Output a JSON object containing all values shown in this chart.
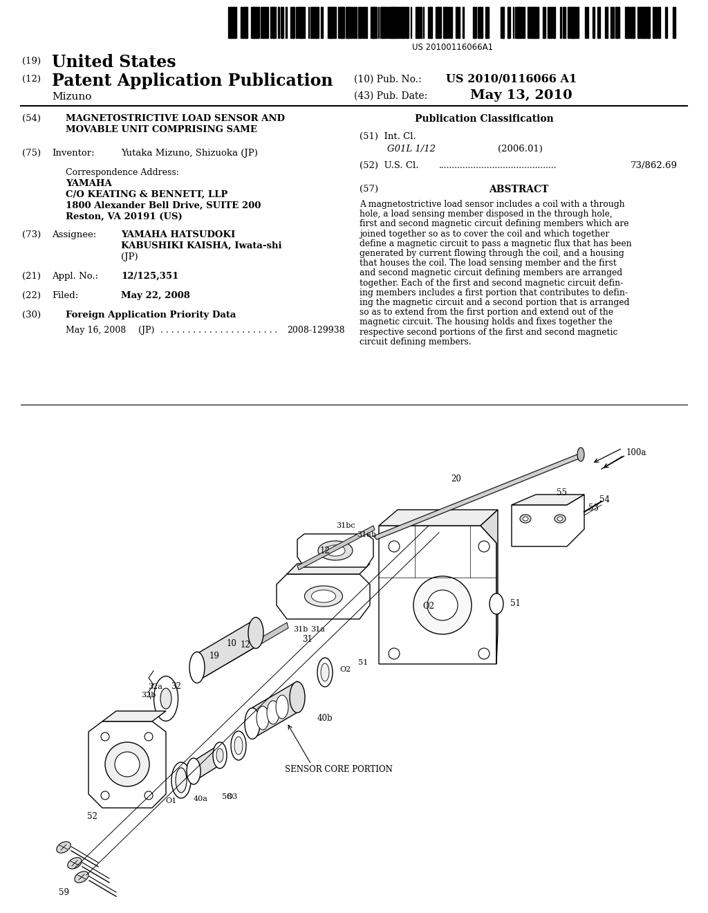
{
  "background_color": "#ffffff",
  "barcode_text": "US 20100116066A1",
  "us_label": "(19)",
  "us_text": "United States",
  "pat_label": "(12)",
  "pat_text": "Patent Application Publication",
  "pub_no_label": "(10) Pub. No.:",
  "pub_no_value": "US 2010/0116066 A1",
  "inventor_surname": "Mizuno",
  "pub_date_label": "(43) Pub. Date:",
  "pub_date_value": "May 13, 2010",
  "title_label": "(54)",
  "title_line1": "MAGNETOSTRICTIVE LOAD SENSOR AND",
  "title_line2": "MOVABLE UNIT COMPRISING SAME",
  "pub_class_header": "Publication Classification",
  "int_cl_label": "(51)  Int. Cl.",
  "int_cl_value": "G01L 1/12",
  "int_cl_year": "(2006.01)",
  "us_cl_label": "(52)  U.S. Cl.",
  "us_cl_value": "73/862.69",
  "abstract_label": "(57)",
  "abstract_header": "ABSTRACT",
  "abstract_text": "A magnetostrictive load sensor includes a coil with a through hole, a load sensing member disposed in the through hole, first and second magnetic circuit defining members which are joined together so as to cover the coil and which together define a magnetic circuit to pass a magnetic flux that has been generated by current flowing through the coil, and a housing that houses the coil. The load sensing member and the first and second magnetic circuit defining members are arranged together. Each of the first and second magnetic circuit defin-ing members includes a first portion that contributes to defin-ing the magnetic circuit and a second portion that is arranged so as to extend from the first portion and extend out of the magnetic circuit. The housing holds and fixes together the respective second portions of the first and second magnetic circuit defining members.",
  "inventor_label": "(75)",
  "inventor_name_label": "Inventor:",
  "inventor_value": "Yutaka Mizuno, Shizuoka (JP)",
  "corr_address_label": "Correspondence Address:",
  "corr_line1": "YAMAHA",
  "corr_line2": "C/O KEATING & BENNETT, LLP",
  "corr_line3": "1800 Alexander Bell Drive, SUITE 200",
  "corr_line4": "Reston, VA 20191 (US)",
  "assignee_label": "(73)",
  "assignee_name_label": "Assignee:",
  "assignee_value_line1": "YAMAHA HATSUDOKI",
  "assignee_value_line2": "KABUSHIKI KAISHA, Iwata-shi",
  "assignee_value_line3": "(JP)",
  "appl_no_label": "(21)",
  "appl_no_name": "Appl. No.:",
  "appl_no_value": "12/125,351",
  "filed_label": "(22)",
  "filed_name": "Filed:",
  "filed_value": "May 22, 2008",
  "foreign_label": "(30)",
  "foreign_header": "Foreign Application Priority Data",
  "foreign_date": "May 16, 2008",
  "foreign_country": "(JP)",
  "foreign_value": "2008-129938"
}
